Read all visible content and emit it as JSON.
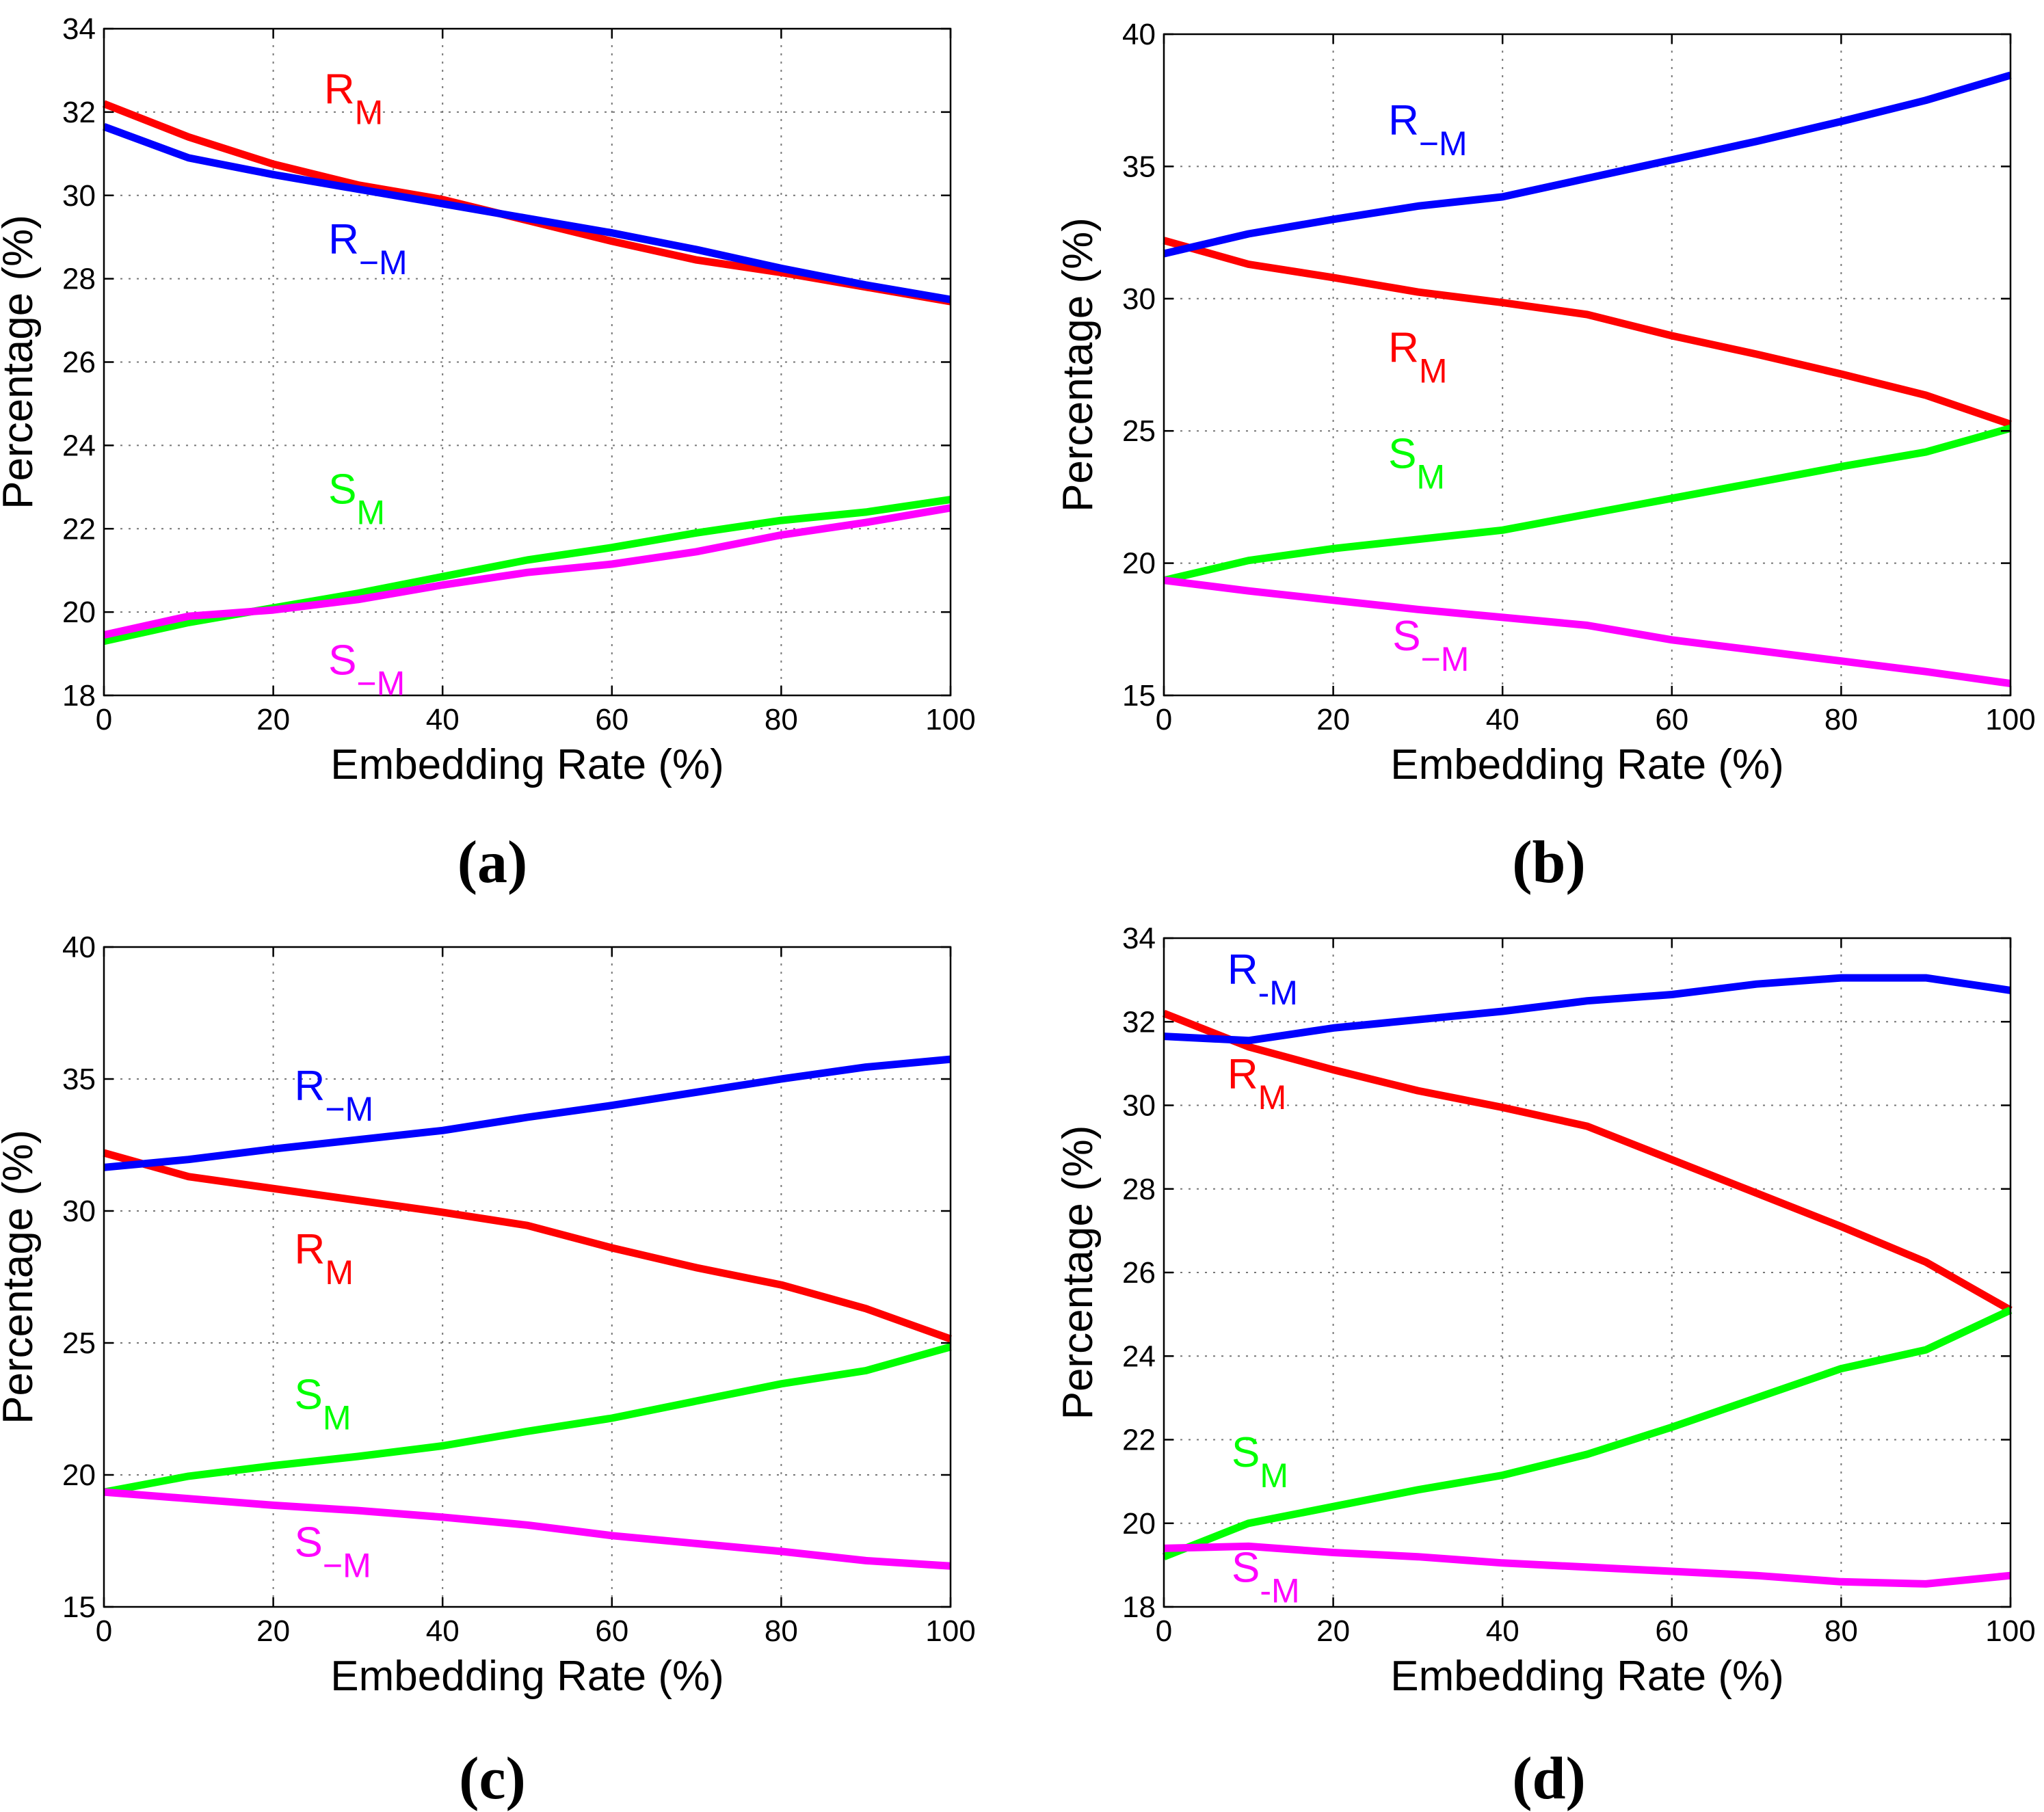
{
  "figure": {
    "colors": {
      "R_M": "#ff0000",
      "R_-M": "#0000ff",
      "S_M": "#00ff00",
      "S_-M": "#ff00ff",
      "axis": "#000000",
      "grid": "#777777"
    }
  },
  "chart_data": [
    {
      "type": "line",
      "panel": "(a)",
      "xlabel": "Embedding Rate (%)",
      "ylabel": "Percentage (%)",
      "xlim": [
        0,
        100
      ],
      "ylim": [
        18,
        34
      ],
      "xticks": [
        0,
        20,
        40,
        60,
        80,
        100
      ],
      "yticks": [
        18,
        20,
        22,
        24,
        26,
        28,
        30,
        32,
        34
      ],
      "grid": true,
      "x": [
        0,
        10,
        20,
        30,
        40,
        50,
        60,
        70,
        80,
        90,
        100
      ],
      "series": [
        {
          "name": "R_M",
          "color": "#ff0000",
          "values": [
            32.2,
            31.4,
            30.75,
            30.25,
            29.9,
            29.4,
            28.9,
            28.45,
            28.15,
            27.8,
            27.45
          ]
        },
        {
          "name": "R_-M",
          "color": "#0000ff",
          "values": [
            31.65,
            30.9,
            30.5,
            30.15,
            29.8,
            29.45,
            29.1,
            28.7,
            28.25,
            27.85,
            27.5
          ]
        },
        {
          "name": "S_M",
          "color": "#00ff00",
          "values": [
            19.3,
            19.75,
            20.1,
            20.45,
            20.85,
            21.25,
            21.55,
            21.9,
            22.2,
            22.4,
            22.7
          ]
        },
        {
          "name": "S_-M",
          "color": "#ff00ff",
          "values": [
            19.45,
            19.9,
            20.05,
            20.3,
            20.65,
            20.95,
            21.15,
            21.45,
            21.85,
            22.15,
            22.5
          ]
        }
      ],
      "annotations": [
        {
          "series": "R_M",
          "base": "R",
          "sub": "M",
          "color": "#ff0000",
          "x": 26,
          "y": 32.2
        },
        {
          "series": "R_-M",
          "base": "R",
          "sub": "−M",
          "color": "#0000ff",
          "x": 26.5,
          "y": 28.6
        },
        {
          "series": "S_M",
          "base": "S",
          "sub": "M",
          "color": "#00ff00",
          "x": 26.5,
          "y": 22.6
        },
        {
          "series": "S_-M",
          "base": "S",
          "sub": "−M",
          "color": "#ff00ff",
          "x": 26.5,
          "y": 18.5
        }
      ]
    },
    {
      "type": "line",
      "panel": "(b)",
      "xlabel": "Embedding Rate (%)",
      "ylabel": "Percentage (%)",
      "xlim": [
        0,
        100
      ],
      "ylim": [
        15,
        40
      ],
      "xticks": [
        0,
        20,
        40,
        60,
        80,
        100
      ],
      "yticks": [
        15,
        20,
        25,
        30,
        35,
        40
      ],
      "grid": true,
      "x": [
        0,
        10,
        20,
        30,
        40,
        50,
        60,
        70,
        80,
        90,
        100
      ],
      "series": [
        {
          "name": "R_M",
          "color": "#ff0000",
          "values": [
            32.2,
            31.3,
            30.8,
            30.25,
            29.85,
            29.4,
            28.6,
            27.9,
            27.15,
            26.35,
            25.25
          ]
        },
        {
          "name": "R_-M",
          "color": "#0000ff",
          "values": [
            31.7,
            32.45,
            33.0,
            33.5,
            33.85,
            34.55,
            35.25,
            35.95,
            36.7,
            37.5,
            38.45
          ]
        },
        {
          "name": "S_M",
          "color": "#00ff00",
          "values": [
            19.35,
            20.1,
            20.55,
            20.9,
            21.25,
            21.85,
            22.45,
            23.05,
            23.65,
            24.2,
            25.1
          ]
        },
        {
          "name": "S_-M",
          "color": "#ff00ff",
          "values": [
            19.35,
            18.95,
            18.6,
            18.25,
            17.95,
            17.65,
            17.1,
            16.7,
            16.3,
            15.9,
            15.45
          ]
        }
      ],
      "annotations": [
        {
          "series": "R_-M",
          "base": "R",
          "sub": "−M",
          "color": "#0000ff",
          "x": 26.5,
          "y": 36.2
        },
        {
          "series": "R_M",
          "base": "R",
          "sub": "M",
          "color": "#ff0000",
          "x": 26.5,
          "y": 27.6
        },
        {
          "series": "S_M",
          "base": "S",
          "sub": "M",
          "color": "#00ff00",
          "x": 26.5,
          "y": 23.6
        },
        {
          "series": "S_-M",
          "base": "S",
          "sub": "−M",
          "color": "#ff00ff",
          "x": 27,
          "y": 16.7
        }
      ]
    },
    {
      "type": "line",
      "panel": "(c)",
      "xlabel": "Embedding Rate (%)",
      "ylabel": "Percentage (%)",
      "xlim": [
        0,
        100
      ],
      "ylim": [
        15,
        40
      ],
      "xticks": [
        0,
        20,
        40,
        60,
        80,
        100
      ],
      "yticks": [
        15,
        20,
        25,
        30,
        35,
        40
      ],
      "grid": true,
      "x": [
        0,
        10,
        20,
        30,
        40,
        50,
        60,
        70,
        80,
        90,
        100
      ],
      "series": [
        {
          "name": "R_M",
          "color": "#ff0000",
          "values": [
            32.2,
            31.3,
            30.85,
            30.4,
            29.95,
            29.45,
            28.6,
            27.85,
            27.2,
            26.3,
            25.15
          ]
        },
        {
          "name": "R_-M",
          "color": "#0000ff",
          "values": [
            31.65,
            31.95,
            32.35,
            32.7,
            33.05,
            33.55,
            34.0,
            34.5,
            35.0,
            35.45,
            35.75
          ]
        },
        {
          "name": "S_M",
          "color": "#00ff00",
          "values": [
            19.35,
            19.95,
            20.35,
            20.7,
            21.1,
            21.65,
            22.15,
            22.8,
            23.45,
            23.95,
            24.85
          ]
        },
        {
          "name": "S_-M",
          "color": "#ff00ff",
          "values": [
            19.35,
            19.1,
            18.85,
            18.65,
            18.4,
            18.1,
            17.7,
            17.4,
            17.1,
            16.75,
            16.55
          ]
        }
      ],
      "annotations": [
        {
          "series": "R_-M",
          "base": "R",
          "sub": "−M",
          "color": "#0000ff",
          "x": 22.5,
          "y": 34.2
        },
        {
          "series": "R_M",
          "base": "R",
          "sub": "M",
          "color": "#ff0000",
          "x": 22.5,
          "y": 28.0
        },
        {
          "series": "S_M",
          "base": "S",
          "sub": "M",
          "color": "#00ff00",
          "x": 22.5,
          "y": 22.5
        },
        {
          "series": "S_-M",
          "base": "S",
          "sub": "−M",
          "color": "#ff00ff",
          "x": 22.5,
          "y": 16.9
        }
      ]
    },
    {
      "type": "line",
      "panel": "(d)",
      "xlabel": "Embedding Rate (%)",
      "ylabel": "Percentage (%)",
      "xlim": [
        0,
        100
      ],
      "ylim": [
        18,
        34
      ],
      "xticks": [
        0,
        20,
        40,
        60,
        80,
        100
      ],
      "yticks": [
        18,
        20,
        22,
        24,
        26,
        28,
        30,
        32,
        34
      ],
      "grid": true,
      "x": [
        0,
        10,
        20,
        30,
        40,
        50,
        60,
        70,
        80,
        90,
        100
      ],
      "series": [
        {
          "name": "R_M",
          "color": "#ff0000",
          "values": [
            32.2,
            31.4,
            30.85,
            30.35,
            29.95,
            29.5,
            28.7,
            27.9,
            27.1,
            26.25,
            25.1
          ]
        },
        {
          "name": "R_-M",
          "color": "#0000ff",
          "values": [
            31.65,
            31.55,
            31.85,
            32.05,
            32.25,
            32.5,
            32.65,
            32.9,
            33.05,
            33.05,
            32.75
          ]
        },
        {
          "name": "S_M",
          "color": "#00ff00",
          "values": [
            19.2,
            20.0,
            20.4,
            20.8,
            21.15,
            21.65,
            22.3,
            23.0,
            23.7,
            24.15,
            25.1
          ]
        },
        {
          "name": "S_-M",
          "color": "#ff00ff",
          "values": [
            19.4,
            19.45,
            19.3,
            19.2,
            19.05,
            18.95,
            18.85,
            18.75,
            18.6,
            18.55,
            18.75
          ]
        }
      ],
      "annotations": [
        {
          "series": "R_-M",
          "base": "R",
          "sub": "-M",
          "color": "#0000ff",
          "x": 7.5,
          "y": 32.9
        },
        {
          "series": "R_M",
          "base": "R",
          "sub": "M",
          "color": "#ff0000",
          "x": 7.5,
          "y": 30.4
        },
        {
          "series": "S_M",
          "base": "S",
          "sub": "M",
          "color": "#00ff00",
          "x": 8,
          "y": 21.35
        },
        {
          "series": "S_-M",
          "base": "S",
          "sub": "-M",
          "color": "#ff00ff",
          "x": 8,
          "y": 18.6
        }
      ]
    }
  ]
}
